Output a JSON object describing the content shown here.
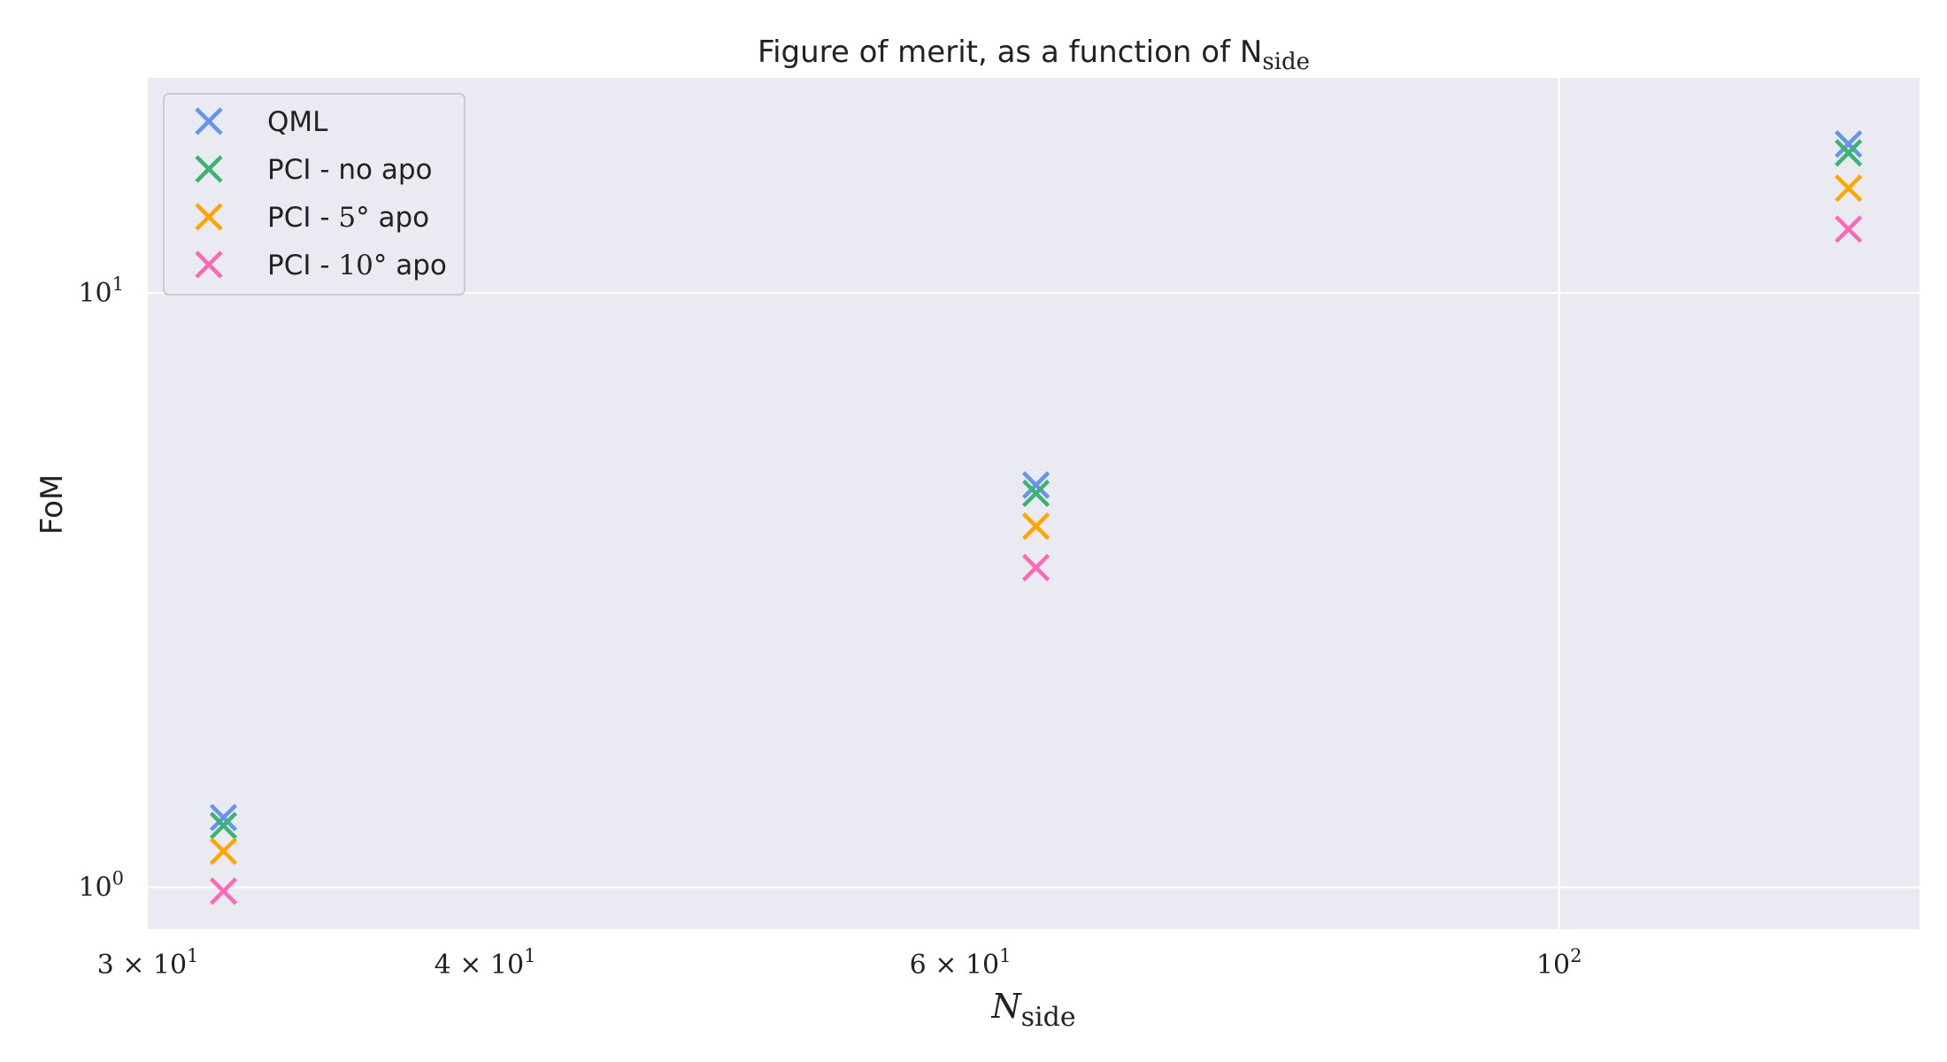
{
  "chart_data": {
    "type": "scatter",
    "title": "Figure of merit, as a function of N",
    "title_subscript": "side",
    "xlabel": "N",
    "xlabel_subscript": "side",
    "ylabel": "FoM",
    "xscale": "log",
    "yscale": "log",
    "xlim": [
      30,
      136
    ],
    "ylim": [
      0.85,
      23
    ],
    "x_ticks": [
      {
        "value": 30,
        "mantissa": "3",
        "power": "1"
      },
      {
        "value": 40,
        "mantissa": "4",
        "power": "1"
      },
      {
        "value": 60,
        "mantissa": "6",
        "power": "1"
      },
      {
        "value": 100,
        "mantissa": "",
        "power": "2"
      }
    ],
    "y_ticks": [
      {
        "value": 1,
        "power": "0"
      },
      {
        "value": 10,
        "power": "1"
      }
    ],
    "grid": true,
    "legend_position": "top-left",
    "marker": "x",
    "x": [
      32,
      64,
      128
    ],
    "series": [
      {
        "name": "QML",
        "name_suffix": "",
        "color": "#6495ED",
        "values": [
          1.31,
          4.75,
          17.8
        ]
      },
      {
        "name": "PCI - no apo",
        "name_suffix": "",
        "color": "#3CB371",
        "values": [
          1.27,
          4.6,
          17.2
        ]
      },
      {
        "name": "PCI - ",
        "name_math": "5°",
        "name_suffix": " apo",
        "color": "#FFA500",
        "values": [
          1.15,
          4.05,
          15.0
        ]
      },
      {
        "name": "PCI - ",
        "name_math": "10°",
        "name_suffix": " apo",
        "color": "#FF69B4",
        "values": [
          0.985,
          3.45,
          12.8
        ]
      }
    ]
  }
}
